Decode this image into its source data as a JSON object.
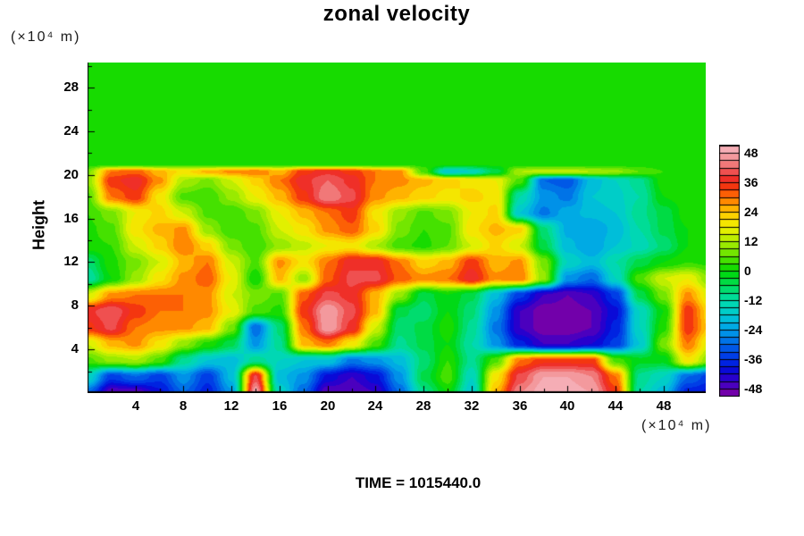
{
  "time_label": "TIME = 1015440.0",
  "chart_data": {
    "type": "heatmap",
    "title": "zonal velocity",
    "ylabel": "Height",
    "y_units": "(×10⁴ m)",
    "x_units": "(×10⁴ m)",
    "xlim": [
      0,
      51.5
    ],
    "ylim": [
      0,
      30.3
    ],
    "x_ticks": [
      4,
      8,
      12,
      16,
      20,
      24,
      28,
      32,
      36,
      40,
      44,
      48
    ],
    "y_ticks": [
      4,
      8,
      12,
      16,
      20,
      24,
      28
    ],
    "grid_on": false,
    "legend_position": "right-colorbar",
    "colorbar": {
      "labels": [
        48,
        36,
        24,
        12,
        0,
        -12,
        -24,
        -36,
        -48
      ],
      "min": -51,
      "max": 51,
      "level_step": 3
    },
    "colormap_stops": [
      [
        -51,
        "#8a00a0"
      ],
      [
        -48,
        "#5a00b4"
      ],
      [
        -45,
        "#3c00c8"
      ],
      [
        -42,
        "#1400d2"
      ],
      [
        -39,
        "#0014dc"
      ],
      [
        -36,
        "#0032e6"
      ],
      [
        -33,
        "#004be6"
      ],
      [
        -30,
        "#0064e6"
      ],
      [
        -27,
        "#0082e8"
      ],
      [
        -24,
        "#00a0e8"
      ],
      [
        -21,
        "#00b4e0"
      ],
      [
        -18,
        "#00c8d2"
      ],
      [
        -15,
        "#00d2be"
      ],
      [
        -12,
        "#00dcaa"
      ],
      [
        -9,
        "#00dc82"
      ],
      [
        -6,
        "#00dc5a"
      ],
      [
        -3,
        "#00da2d"
      ],
      [
        0,
        "#00d800"
      ],
      [
        3,
        "#2ede00"
      ],
      [
        6,
        "#5ce400"
      ],
      [
        9,
        "#8ae800"
      ],
      [
        12,
        "#a8ec00"
      ],
      [
        15,
        "#d2f000"
      ],
      [
        18,
        "#f0f000"
      ],
      [
        21,
        "#f8dc00"
      ],
      [
        24,
        "#ffc800"
      ],
      [
        27,
        "#ff9e00"
      ],
      [
        30,
        "#ff7400"
      ],
      [
        33,
        "#f84b0a"
      ],
      [
        36,
        "#f02214"
      ],
      [
        39,
        "#ee3c3c"
      ],
      [
        42,
        "#f06464"
      ],
      [
        45,
        "#f28c8c"
      ],
      [
        48,
        "#f4a6ae"
      ],
      [
        51,
        "#f6b4bc"
      ]
    ],
    "grid": {
      "cols_u": [
        0,
        2,
        4,
        6,
        8,
        10,
        12,
        14,
        16,
        18,
        20,
        22,
        24,
        26,
        28,
        30,
        32,
        34,
        36,
        38,
        40,
        42,
        44,
        46,
        48,
        50,
        52
      ],
      "rows_h": [
        30,
        24,
        22,
        21,
        20.3,
        19.5,
        18,
        16.5,
        15,
        13.5,
        12,
        10.5,
        9,
        7.5,
        6,
        4.5,
        3,
        1.5,
        0
      ],
      "values": [
        [
          1,
          1,
          1,
          1,
          1,
          1,
          1,
          1,
          1,
          1,
          1,
          1,
          1,
          1,
          1,
          1,
          1,
          1,
          1,
          1,
          1,
          1,
          1,
          1,
          1,
          1,
          1
        ],
        [
          1,
          1,
          1,
          1,
          1,
          1,
          1,
          1,
          1,
          1,
          1,
          1,
          1,
          1,
          1,
          1,
          1,
          1,
          1,
          1,
          1,
          1,
          1,
          1,
          1,
          1,
          1
        ],
        [
          1,
          1,
          1,
          1,
          1,
          1,
          1,
          1,
          1,
          1,
          1,
          1,
          1,
          1,
          1,
          1,
          1,
          1,
          1,
          1,
          1,
          1,
          1,
          1,
          1,
          1,
          1
        ],
        [
          1,
          1,
          1,
          1,
          1,
          1,
          1,
          1,
          1,
          1,
          1,
          1,
          1,
          1,
          2,
          2,
          1,
          1,
          1,
          1,
          1,
          1,
          1,
          1,
          1,
          1,
          1
        ],
        [
          8,
          30,
          32,
          25,
          20,
          25,
          28,
          30,
          25,
          35,
          38,
          35,
          30,
          28,
          5,
          -18,
          -15,
          -5,
          12,
          14,
          14,
          12,
          10,
          6,
          3,
          1,
          1
        ],
        [
          10,
          35,
          38,
          28,
          12,
          8,
          15,
          22,
          30,
          38,
          42,
          38,
          30,
          28,
          25,
          22,
          20,
          18,
          5,
          -30,
          -32,
          -20,
          -15,
          -10,
          2,
          2,
          1
        ],
        [
          5,
          30,
          35,
          20,
          5,
          3,
          10,
          18,
          25,
          35,
          45,
          40,
          28,
          25,
          22,
          20,
          22,
          20,
          -12,
          -25,
          -28,
          -18,
          -16,
          -12,
          0,
          2,
          1
        ],
        [
          3,
          8,
          18,
          22,
          15,
          5,
          3,
          8,
          18,
          25,
          30,
          35,
          20,
          10,
          5,
          8,
          18,
          22,
          -18,
          -28,
          -22,
          -20,
          -18,
          -10,
          -5,
          2,
          2
        ],
        [
          2,
          5,
          20,
          25,
          28,
          10,
          3,
          5,
          15,
          20,
          28,
          32,
          22,
          8,
          3,
          5,
          20,
          25,
          22,
          -8,
          -22,
          -24,
          -20,
          -12,
          -5,
          0,
          2
        ],
        [
          2,
          3,
          15,
          22,
          30,
          22,
          8,
          3,
          10,
          14,
          18,
          20,
          12,
          4,
          2,
          6,
          15,
          22,
          15,
          -5,
          -20,
          -24,
          -18,
          -14,
          -8,
          0,
          2
        ],
        [
          -8,
          2,
          8,
          15,
          25,
          30,
          15,
          5,
          28,
          20,
          30,
          38,
          38,
          30,
          22,
          25,
          35,
          25,
          28,
          8,
          -15,
          -20,
          -12,
          -5,
          0,
          3,
          2
        ],
        [
          -12,
          0,
          10,
          20,
          28,
          32,
          18,
          0,
          25,
          10,
          32,
          40,
          40,
          32,
          28,
          30,
          38,
          28,
          30,
          10,
          -25,
          -30,
          -15,
          5,
          15,
          18,
          8
        ],
        [
          15,
          28,
          30,
          30,
          30,
          28,
          15,
          8,
          5,
          32,
          40,
          38,
          25,
          10,
          -5,
          0,
          -5,
          -20,
          -35,
          -45,
          -48,
          -45,
          -35,
          -5,
          8,
          28,
          15
        ],
        [
          38,
          42,
          35,
          30,
          30,
          28,
          18,
          5,
          2,
          35,
          48,
          40,
          25,
          -5,
          -8,
          0,
          -8,
          -25,
          -45,
          -50,
          -50,
          -48,
          -40,
          -15,
          0,
          35,
          20
        ],
        [
          35,
          40,
          30,
          28,
          28,
          25,
          8,
          -30,
          -8,
          30,
          48,
          38,
          15,
          -8,
          -5,
          2,
          -10,
          -28,
          -45,
          -50,
          -50,
          -48,
          -38,
          -15,
          2,
          35,
          22
        ],
        [
          15,
          25,
          28,
          20,
          10,
          2,
          -5,
          -25,
          -10,
          25,
          30,
          20,
          5,
          -10,
          -5,
          0,
          -12,
          -25,
          -38,
          -45,
          -45,
          -42,
          -35,
          -18,
          8,
          30,
          15
        ],
        [
          5,
          10,
          12,
          5,
          -10,
          -18,
          -20,
          -10,
          -15,
          -18,
          -18,
          -28,
          -25,
          -20,
          -8,
          3,
          -10,
          5,
          30,
          35,
          35,
          35,
          5,
          -2,
          -2,
          20,
          8
        ],
        [
          -15,
          -35,
          -30,
          -35,
          -25,
          -35,
          -20,
          40,
          -20,
          -25,
          -40,
          -45,
          -40,
          -25,
          -5,
          5,
          -15,
          20,
          40,
          48,
          48,
          45,
          30,
          -10,
          -15,
          -30,
          -35
        ],
        [
          -30,
          -48,
          -48,
          -40,
          -30,
          -38,
          -25,
          48,
          -15,
          -30,
          -48,
          -48,
          -45,
          -30,
          -10,
          0,
          -18,
          25,
          45,
          50,
          50,
          48,
          35,
          -12,
          -20,
          -38,
          -40
        ]
      ]
    }
  }
}
